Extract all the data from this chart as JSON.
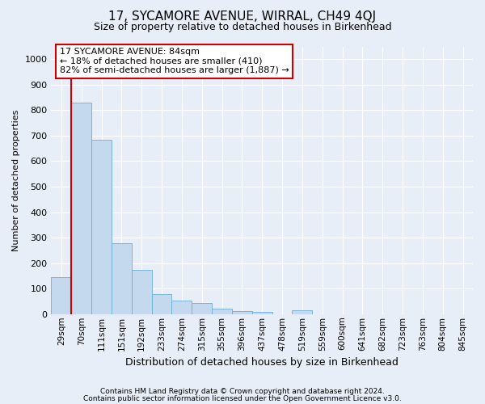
{
  "title1": "17, SYCAMORE AVENUE, WIRRAL, CH49 4QJ",
  "title2": "Size of property relative to detached houses in Birkenhead",
  "xlabel": "Distribution of detached houses by size in Birkenhead",
  "ylabel": "Number of detached properties",
  "categories": [
    "29sqm",
    "70sqm",
    "111sqm",
    "151sqm",
    "192sqm",
    "233sqm",
    "274sqm",
    "315sqm",
    "355sqm",
    "396sqm",
    "437sqm",
    "478sqm",
    "519sqm",
    "559sqm",
    "600sqm",
    "641sqm",
    "682sqm",
    "723sqm",
    "763sqm",
    "804sqm",
    "845sqm"
  ],
  "bar_heights": [
    145,
    830,
    685,
    278,
    172,
    78,
    52,
    43,
    20,
    13,
    10,
    0,
    14,
    0,
    0,
    0,
    0,
    0,
    0,
    0,
    0
  ],
  "bar_color": "#c5d9ee",
  "bar_edge_color": "#6baed6",
  "annotation_line1": "17 SYCAMORE AVENUE: 84sqm",
  "annotation_line2": "← 18% of detached houses are smaller (410)",
  "annotation_line3": "82% of semi-detached houses are larger (1,887) →",
  "annotation_box_color": "#ffffff",
  "annotation_box_edge_color": "#cc0000",
  "vline_x": 1.0,
  "vline_color": "#cc0000",
  "ylim": [
    0,
    1050
  ],
  "yticks": [
    0,
    100,
    200,
    300,
    400,
    500,
    600,
    700,
    800,
    900,
    1000
  ],
  "footnote1": "Contains HM Land Registry data © Crown copyright and database right 2024.",
  "footnote2": "Contains public sector information licensed under the Open Government Licence v3.0.",
  "background_color": "#e8eef7",
  "plot_bg_color": "#e8eef7",
  "title1_fontsize": 11,
  "title2_fontsize": 9,
  "ylabel_fontsize": 8,
  "xlabel_fontsize": 9,
  "tick_fontsize": 8,
  "xtick_fontsize": 7.5,
  "footnote_fontsize": 6.5
}
